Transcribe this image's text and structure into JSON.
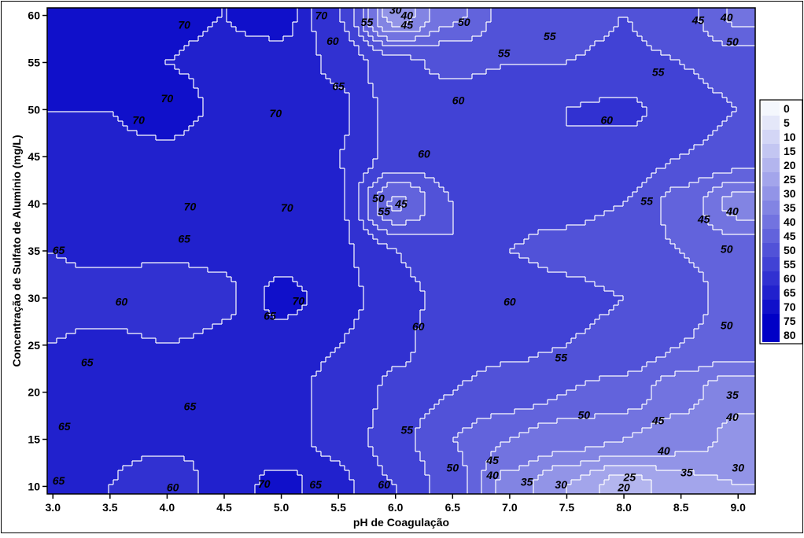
{
  "chart_data": {
    "type": "contour",
    "title": "",
    "xlabel": "pH de Coagulação",
    "ylabel": "Concentração de Sulfato de Alumínio (mg/L)",
    "xlim": [
      2.95,
      9.15
    ],
    "ylim": [
      9.2,
      60.8
    ],
    "xticks": [
      "3.0",
      "3.5",
      "4.0",
      "4.5",
      "5.0",
      "5.5",
      "6.0",
      "6.5",
      "7.0",
      "7.5",
      "8.0",
      "8.5",
      "9.0"
    ],
    "yticks": [
      "10",
      "15",
      "20",
      "25",
      "30",
      "35",
      "40",
      "45",
      "50",
      "55",
      "60"
    ],
    "legend": {
      "placement": "right",
      "levels": [
        "0",
        "5",
        "10",
        "15",
        "20",
        "25",
        "30",
        "35",
        "40",
        "45",
        "50",
        "55",
        "60",
        "65",
        "70",
        "75",
        "80"
      ]
    },
    "colors": {
      "low": "#f4f7fd",
      "high": "#0000c6",
      "contour_line": "#ffffff"
    },
    "grid_points": {
      "x": [
        3.0,
        3.5,
        4.0,
        4.5,
        5.0,
        5.5,
        6.0,
        6.5,
        7.0,
        7.5,
        8.0,
        8.5,
        9.0
      ],
      "y": [
        10,
        15,
        20,
        25,
        30,
        35,
        40,
        45,
        50,
        55,
        60
      ],
      "z_rows_by_y": [
        [
          65,
          65,
          62,
          67,
          72,
          66,
          60,
          52,
          38,
          30,
          22,
          28,
          30
        ],
        [
          65,
          66,
          66,
          66,
          66,
          64,
          57,
          50,
          45,
          42,
          40,
          37,
          34
        ],
        [
          68,
          67,
          66,
          65,
          66,
          64,
          59,
          55,
          53,
          50,
          48,
          42,
          36
        ],
        [
          65,
          66,
          65,
          66,
          67,
          65,
          61,
          57,
          56,
          55,
          54,
          50,
          48
        ],
        [
          64,
          63,
          60,
          64,
          72,
          67,
          62,
          58,
          58,
          56,
          55,
          52,
          48
        ],
        [
          65,
          66,
          66,
          66,
          67,
          66,
          60,
          55,
          55,
          54,
          52,
          50,
          47
        ],
        [
          66,
          67,
          70,
          67,
          70,
          66,
          44,
          55,
          56,
          56,
          55,
          48,
          38
        ],
        [
          69,
          69,
          69,
          67,
          66,
          65,
          58,
          58,
          59,
          60,
          58,
          55,
          53
        ],
        [
          70,
          70,
          72,
          69,
          70,
          66,
          58,
          58,
          58,
          60,
          61,
          58,
          55
        ],
        [
          70,
          70,
          70,
          69,
          68,
          64,
          56,
          54,
          55,
          55,
          56,
          55,
          52
        ],
        [
          70,
          70,
          71,
          70,
          72,
          60,
          32,
          44,
          52,
          53,
          55,
          52,
          44
        ]
      ]
    },
    "contour_labels": [
      {
        "text": "70",
        "x": 4.15,
        "y": 59.0
      },
      {
        "text": "70",
        "x": 4.0,
        "y": 51.2
      },
      {
        "text": "70",
        "x": 3.75,
        "y": 48.9
      },
      {
        "text": "70",
        "x": 4.95,
        "y": 49.6
      },
      {
        "text": "70",
        "x": 4.2,
        "y": 39.7
      },
      {
        "text": "70",
        "x": 5.05,
        "y": 39.6
      },
      {
        "text": "65",
        "x": 4.15,
        "y": 36.3
      },
      {
        "text": "65",
        "x": 3.05,
        "y": 35.1
      },
      {
        "text": "60",
        "x": 3.6,
        "y": 29.6
      },
      {
        "text": "70",
        "x": 5.15,
        "y": 29.7
      },
      {
        "text": "65",
        "x": 4.9,
        "y": 28.1
      },
      {
        "text": "65",
        "x": 3.3,
        "y": 23.2
      },
      {
        "text": "65",
        "x": 4.2,
        "y": 18.5
      },
      {
        "text": "65",
        "x": 3.1,
        "y": 16.4
      },
      {
        "text": "65",
        "x": 3.05,
        "y": 10.6
      },
      {
        "text": "60",
        "x": 4.05,
        "y": 9.9
      },
      {
        "text": "70",
        "x": 4.85,
        "y": 10.3
      },
      {
        "text": "65",
        "x": 5.3,
        "y": 10.2
      },
      {
        "text": "70",
        "x": 5.35,
        "y": 60.0
      },
      {
        "text": "60",
        "x": 5.45,
        "y": 57.3
      },
      {
        "text": "55",
        "x": 5.75,
        "y": 59.3
      },
      {
        "text": "65",
        "x": 5.5,
        "y": 52.5
      },
      {
        "text": "30",
        "x": 6.0,
        "y": 60.6
      },
      {
        "text": "40",
        "x": 6.1,
        "y": 60.0
      },
      {
        "text": "45",
        "x": 6.1,
        "y": 59.0
      },
      {
        "text": "50",
        "x": 6.6,
        "y": 59.3
      },
      {
        "text": "55",
        "x": 7.35,
        "y": 57.8
      },
      {
        "text": "55",
        "x": 6.95,
        "y": 56.0
      },
      {
        "text": "55",
        "x": 8.3,
        "y": 54.0
      },
      {
        "text": "45",
        "x": 8.65,
        "y": 59.5
      },
      {
        "text": "40",
        "x": 8.9,
        "y": 59.8
      },
      {
        "text": "50",
        "x": 8.95,
        "y": 57.2
      },
      {
        "text": "60",
        "x": 6.55,
        "y": 51.0
      },
      {
        "text": "60",
        "x": 7.85,
        "y": 48.9
      },
      {
        "text": "60",
        "x": 6.25,
        "y": 45.3
      },
      {
        "text": "55",
        "x": 5.9,
        "y": 39.2
      },
      {
        "text": "50",
        "x": 5.85,
        "y": 40.6
      },
      {
        "text": "45",
        "x": 6.05,
        "y": 40.0
      },
      {
        "text": "55",
        "x": 8.2,
        "y": 40.3
      },
      {
        "text": "45",
        "x": 8.7,
        "y": 38.4
      },
      {
        "text": "40",
        "x": 8.95,
        "y": 39.2
      },
      {
        "text": "50",
        "x": 8.9,
        "y": 35.2
      },
      {
        "text": "60",
        "x": 6.2,
        "y": 27.0
      },
      {
        "text": "60",
        "x": 7.0,
        "y": 29.6
      },
      {
        "text": "50",
        "x": 8.9,
        "y": 27.1
      },
      {
        "text": "55",
        "x": 7.45,
        "y": 23.7
      },
      {
        "text": "50",
        "x": 7.65,
        "y": 17.6
      },
      {
        "text": "45",
        "x": 8.3,
        "y": 17.0
      },
      {
        "text": "35",
        "x": 8.95,
        "y": 19.7
      },
      {
        "text": "40",
        "x": 8.95,
        "y": 17.4
      },
      {
        "text": "40",
        "x": 8.35,
        "y": 13.8
      },
      {
        "text": "35",
        "x": 8.55,
        "y": 11.5
      },
      {
        "text": "30",
        "x": 9.0,
        "y": 12.0
      },
      {
        "text": "55",
        "x": 6.1,
        "y": 16.0
      },
      {
        "text": "50",
        "x": 6.5,
        "y": 12.0
      },
      {
        "text": "45",
        "x": 6.85,
        "y": 12.8
      },
      {
        "text": "40",
        "x": 6.85,
        "y": 11.2
      },
      {
        "text": "35",
        "x": 7.15,
        "y": 10.5
      },
      {
        "text": "30",
        "x": 7.45,
        "y": 10.2
      },
      {
        "text": "25",
        "x": 8.05,
        "y": 11.0
      },
      {
        "text": "20",
        "x": 8.0,
        "y": 9.9
      },
      {
        "text": "60",
        "x": 5.9,
        "y": 10.2
      }
    ]
  }
}
